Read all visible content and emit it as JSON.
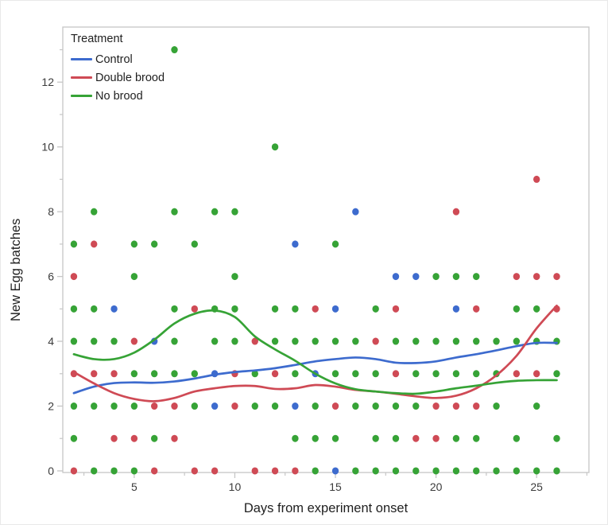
{
  "chart_data": {
    "type": "scatter",
    "title": "",
    "xlabel": "Days from experiment onset",
    "ylabel": "New Egg batches",
    "xlim": [
      1.45,
      27.6
    ],
    "ylim": [
      -0.05,
      13.7
    ],
    "x_major_ticks": [
      5,
      10,
      15,
      20,
      25
    ],
    "x_minor_ticks": [
      2.5,
      7.5,
      12.5,
      17.5,
      22.5,
      27.5
    ],
    "y_major_ticks": [
      0,
      2,
      4,
      6,
      8,
      10,
      12
    ],
    "y_minor_ticks": [
      1,
      3,
      5,
      7,
      9,
      11,
      13
    ],
    "grid": false,
    "legend": {
      "title": "Treatment",
      "position": "top-left"
    },
    "series": [
      {
        "name": "Control",
        "color": "#3d6bce",
        "points": [
          [
            15,
            0
          ],
          [
            9,
            2
          ],
          [
            13,
            2
          ],
          [
            9,
            3
          ],
          [
            14,
            3
          ],
          [
            6,
            4
          ],
          [
            4,
            5
          ],
          [
            15,
            5
          ],
          [
            21,
            5
          ],
          [
            18,
            6
          ],
          [
            19,
            6
          ],
          [
            13,
            7
          ],
          [
            16,
            8
          ]
        ],
        "smooth_line": [
          [
            2,
            2.4
          ],
          [
            3,
            2.6
          ],
          [
            4,
            2.71
          ],
          [
            5,
            2.73
          ],
          [
            6,
            2.72
          ],
          [
            7,
            2.76
          ],
          [
            8,
            2.85
          ],
          [
            9,
            2.97
          ],
          [
            10,
            3.05
          ],
          [
            11,
            3.1
          ],
          [
            12,
            3.17
          ],
          [
            13,
            3.27
          ],
          [
            14,
            3.38
          ],
          [
            15,
            3.45
          ],
          [
            16,
            3.5
          ],
          [
            17,
            3.45
          ],
          [
            18,
            3.34
          ],
          [
            19,
            3.33
          ],
          [
            20,
            3.38
          ],
          [
            21,
            3.5
          ],
          [
            22,
            3.6
          ],
          [
            23,
            3.72
          ],
          [
            24,
            3.85
          ],
          [
            25,
            3.95
          ],
          [
            26,
            3.95
          ]
        ]
      },
      {
        "name": "Double brood",
        "color": "#cf4a55",
        "points": [
          [
            2,
            0
          ],
          [
            6,
            0
          ],
          [
            8,
            0
          ],
          [
            9,
            0
          ],
          [
            11,
            0
          ],
          [
            12,
            0
          ],
          [
            13,
            0
          ],
          [
            4,
            1
          ],
          [
            5,
            1
          ],
          [
            7,
            1
          ],
          [
            19,
            1
          ],
          [
            20,
            1
          ],
          [
            6,
            2
          ],
          [
            7,
            2
          ],
          [
            10,
            2
          ],
          [
            15,
            2
          ],
          [
            20,
            2
          ],
          [
            21,
            2
          ],
          [
            22,
            2
          ],
          [
            2,
            3
          ],
          [
            3,
            3
          ],
          [
            4,
            3
          ],
          [
            10,
            3
          ],
          [
            12,
            3
          ],
          [
            18,
            3
          ],
          [
            24,
            3
          ],
          [
            25,
            3
          ],
          [
            5,
            4
          ],
          [
            11,
            4
          ],
          [
            17,
            4
          ],
          [
            8,
            5
          ],
          [
            14,
            5
          ],
          [
            18,
            5
          ],
          [
            22,
            5
          ],
          [
            26,
            5
          ],
          [
            2,
            6
          ],
          [
            24,
            6
          ],
          [
            25,
            6
          ],
          [
            26,
            6
          ],
          [
            3,
            7
          ],
          [
            21,
            8
          ],
          [
            25,
            9
          ]
        ],
        "smooth_line": [
          [
            2,
            3.05
          ],
          [
            3,
            2.7
          ],
          [
            4,
            2.4
          ],
          [
            5,
            2.22
          ],
          [
            6,
            2.15
          ],
          [
            7,
            2.25
          ],
          [
            8,
            2.45
          ],
          [
            9,
            2.55
          ],
          [
            10,
            2.62
          ],
          [
            11,
            2.62
          ],
          [
            12,
            2.53
          ],
          [
            13,
            2.55
          ],
          [
            14,
            2.65
          ],
          [
            15,
            2.6
          ],
          [
            16,
            2.5
          ],
          [
            17,
            2.45
          ],
          [
            18,
            2.38
          ],
          [
            19,
            2.3
          ],
          [
            20,
            2.25
          ],
          [
            21,
            2.32
          ],
          [
            22,
            2.55
          ],
          [
            23,
            2.95
          ],
          [
            24,
            3.55
          ],
          [
            25,
            4.4
          ],
          [
            26,
            5.1
          ]
        ]
      },
      {
        "name": "No brood",
        "color": "#36a336",
        "points": [
          [
            3,
            0
          ],
          [
            4,
            0
          ],
          [
            5,
            0
          ],
          [
            14,
            0
          ],
          [
            16,
            0
          ],
          [
            17,
            0
          ],
          [
            18,
            0
          ],
          [
            19,
            0
          ],
          [
            20,
            0
          ],
          [
            21,
            0
          ],
          [
            22,
            0
          ],
          [
            23,
            0
          ],
          [
            24,
            0
          ],
          [
            25,
            0
          ],
          [
            26,
            0
          ],
          [
            2,
            1
          ],
          [
            6,
            1
          ],
          [
            13,
            1
          ],
          [
            14,
            1
          ],
          [
            15,
            1
          ],
          [
            17,
            1
          ],
          [
            18,
            1
          ],
          [
            21,
            1
          ],
          [
            22,
            1
          ],
          [
            24,
            1
          ],
          [
            26,
            1
          ],
          [
            2,
            2
          ],
          [
            3,
            2
          ],
          [
            4,
            2
          ],
          [
            5,
            2
          ],
          [
            8,
            2
          ],
          [
            11,
            2
          ],
          [
            12,
            2
          ],
          [
            14,
            2
          ],
          [
            16,
            2
          ],
          [
            17,
            2
          ],
          [
            18,
            2
          ],
          [
            19,
            2
          ],
          [
            23,
            2
          ],
          [
            25,
            2
          ],
          [
            5,
            3
          ],
          [
            6,
            3
          ],
          [
            7,
            3
          ],
          [
            8,
            3
          ],
          [
            11,
            3
          ],
          [
            13,
            3
          ],
          [
            15,
            3
          ],
          [
            16,
            3
          ],
          [
            17,
            3
          ],
          [
            19,
            3
          ],
          [
            20,
            3
          ],
          [
            21,
            3
          ],
          [
            22,
            3
          ],
          [
            23,
            3
          ],
          [
            26,
            3
          ],
          [
            2,
            4
          ],
          [
            3,
            4
          ],
          [
            4,
            4
          ],
          [
            7,
            4
          ],
          [
            9,
            4
          ],
          [
            10,
            4
          ],
          [
            12,
            4
          ],
          [
            13,
            4
          ],
          [
            14,
            4
          ],
          [
            15,
            4
          ],
          [
            16,
            4
          ],
          [
            18,
            4
          ],
          [
            19,
            4
          ],
          [
            20,
            4
          ],
          [
            21,
            4
          ],
          [
            22,
            4
          ],
          [
            23,
            4
          ],
          [
            24,
            4
          ],
          [
            25,
            4
          ],
          [
            26,
            4
          ],
          [
            2,
            5
          ],
          [
            3,
            5
          ],
          [
            7,
            5
          ],
          [
            9,
            5
          ],
          [
            10,
            5
          ],
          [
            12,
            5
          ],
          [
            13,
            5
          ],
          [
            17,
            5
          ],
          [
            24,
            5
          ],
          [
            25,
            5
          ],
          [
            5,
            6
          ],
          [
            10,
            6
          ],
          [
            20,
            6
          ],
          [
            21,
            6
          ],
          [
            22,
            6
          ],
          [
            2,
            7
          ],
          [
            5,
            7
          ],
          [
            6,
            7
          ],
          [
            8,
            7
          ],
          [
            15,
            7
          ],
          [
            3,
            8
          ],
          [
            7,
            8
          ],
          [
            9,
            8
          ],
          [
            10,
            8
          ],
          [
            12,
            10
          ],
          [
            7,
            13
          ]
        ],
        "smooth_line": [
          [
            2,
            3.6
          ],
          [
            3,
            3.45
          ],
          [
            4,
            3.45
          ],
          [
            5,
            3.65
          ],
          [
            6,
            4.05
          ],
          [
            7,
            4.55
          ],
          [
            8,
            4.85
          ],
          [
            9,
            4.95
          ],
          [
            10,
            4.75
          ],
          [
            11,
            4.15
          ],
          [
            12,
            3.75
          ],
          [
            13,
            3.4
          ],
          [
            14,
            3.0
          ],
          [
            15,
            2.7
          ],
          [
            16,
            2.52
          ],
          [
            17,
            2.45
          ],
          [
            18,
            2.4
          ],
          [
            19,
            2.38
          ],
          [
            20,
            2.45
          ],
          [
            21,
            2.55
          ],
          [
            22,
            2.63
          ],
          [
            23,
            2.72
          ],
          [
            24,
            2.78
          ],
          [
            25,
            2.8
          ],
          [
            26,
            2.8
          ]
        ]
      }
    ]
  },
  "style": {
    "axis_color": "#c6c6c6",
    "tick_text_color": "#3b3b3b",
    "label_text_color": "#1f1f1f",
    "background": "#ffffff"
  }
}
